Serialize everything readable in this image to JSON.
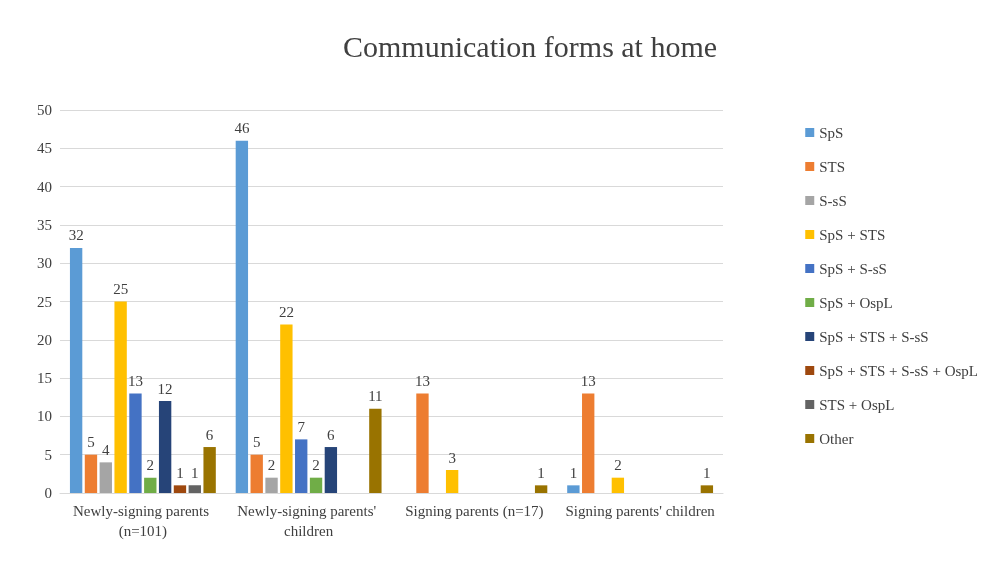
{
  "chart_data": {
    "type": "bar",
    "title": "Communication forms at home",
    "categories": [
      "Newly-signing parents (n=101)",
      "Newly-signing parents' children",
      "Signing parents (n=17)",
      "Signing parents' children"
    ],
    "series": [
      {
        "name": "SpS",
        "color": "#5b9bd5",
        "values": [
          32,
          46,
          null,
          1
        ]
      },
      {
        "name": "STS",
        "color": "#ed7d31",
        "values": [
          5,
          5,
          13,
          13
        ]
      },
      {
        "name": "S-sS",
        "color": "#a5a5a5",
        "values": [
          4,
          2,
          null,
          null
        ]
      },
      {
        "name": "SpS + STS",
        "color": "#ffc000",
        "values": [
          25,
          22,
          3,
          2
        ]
      },
      {
        "name": "SpS + S-sS",
        "color": "#4472c4",
        "values": [
          13,
          7,
          null,
          null
        ]
      },
      {
        "name": "SpS + OspL",
        "color": "#70ad47",
        "values": [
          2,
          2,
          null,
          null
        ]
      },
      {
        "name": "SpS + STS + S-sS",
        "color": "#264478",
        "values": [
          12,
          6,
          null,
          null
        ]
      },
      {
        "name": "SpS + STS + S-sS + OspL",
        "color": "#9e480e",
        "values": [
          1,
          null,
          null,
          null
        ]
      },
      {
        "name": "STS + OspL",
        "color": "#636363",
        "values": [
          1,
          null,
          null,
          null
        ]
      },
      {
        "name": "Other",
        "color": "#997300",
        "values": [
          6,
          11,
          1,
          1
        ]
      }
    ],
    "ylim": [
      0,
      50
    ],
    "yticks": [
      0,
      5,
      10,
      15,
      20,
      25,
      30,
      35,
      40,
      45,
      50
    ],
    "grid": "y",
    "legend": "right",
    "data_labels": true
  }
}
